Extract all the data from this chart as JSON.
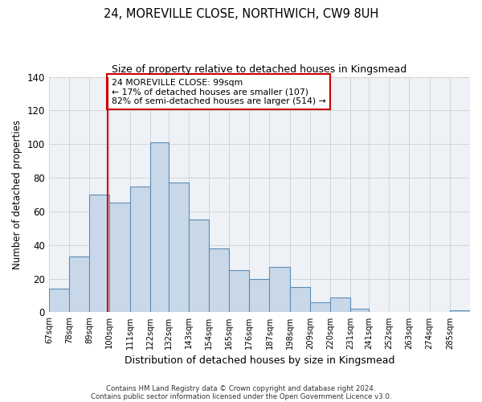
{
  "title": "24, MOREVILLE CLOSE, NORTHWICH, CW9 8UH",
  "subtitle": "Size of property relative to detached houses in Kingsmead",
  "xlabel": "Distribution of detached houses by size in Kingsmead",
  "ylabel": "Number of detached properties",
  "footer_lines": [
    "Contains HM Land Registry data © Crown copyright and database right 2024.",
    "Contains public sector information licensed under the Open Government Licence v3.0."
  ],
  "bin_labels": [
    "67sqm",
    "78sqm",
    "89sqm",
    "100sqm",
    "111sqm",
    "122sqm",
    "132sqm",
    "143sqm",
    "154sqm",
    "165sqm",
    "176sqm",
    "187sqm",
    "198sqm",
    "209sqm",
    "220sqm",
    "231sqm",
    "241sqm",
    "252sqm",
    "263sqm",
    "274sqm",
    "285sqm"
  ],
  "bar_heights": [
    14,
    33,
    70,
    65,
    75,
    101,
    77,
    55,
    38,
    25,
    20,
    27,
    15,
    6,
    9,
    2,
    0,
    0,
    0,
    0,
    1
  ],
  "bar_color": "#c8d8e8",
  "bar_edge_color": "#5b8db8",
  "ylim": [
    0,
    140
  ],
  "yticks": [
    0,
    20,
    40,
    60,
    80,
    100,
    120,
    140
  ],
  "property_line_x": 99,
  "property_line_color": "#cc0000",
  "annotation_text": "24 MOREVILLE CLOSE: 99sqm\n← 17% of detached houses are smaller (107)\n82% of semi-detached houses are larger (514) →",
  "annotation_box_color": "#ffffff",
  "annotation_box_edge_color": "#cc0000",
  "bin_edges_values": [
    67,
    78,
    89,
    100,
    111,
    122,
    132,
    143,
    154,
    165,
    176,
    187,
    198,
    209,
    220,
    231,
    241,
    252,
    263,
    274,
    285,
    296
  ]
}
